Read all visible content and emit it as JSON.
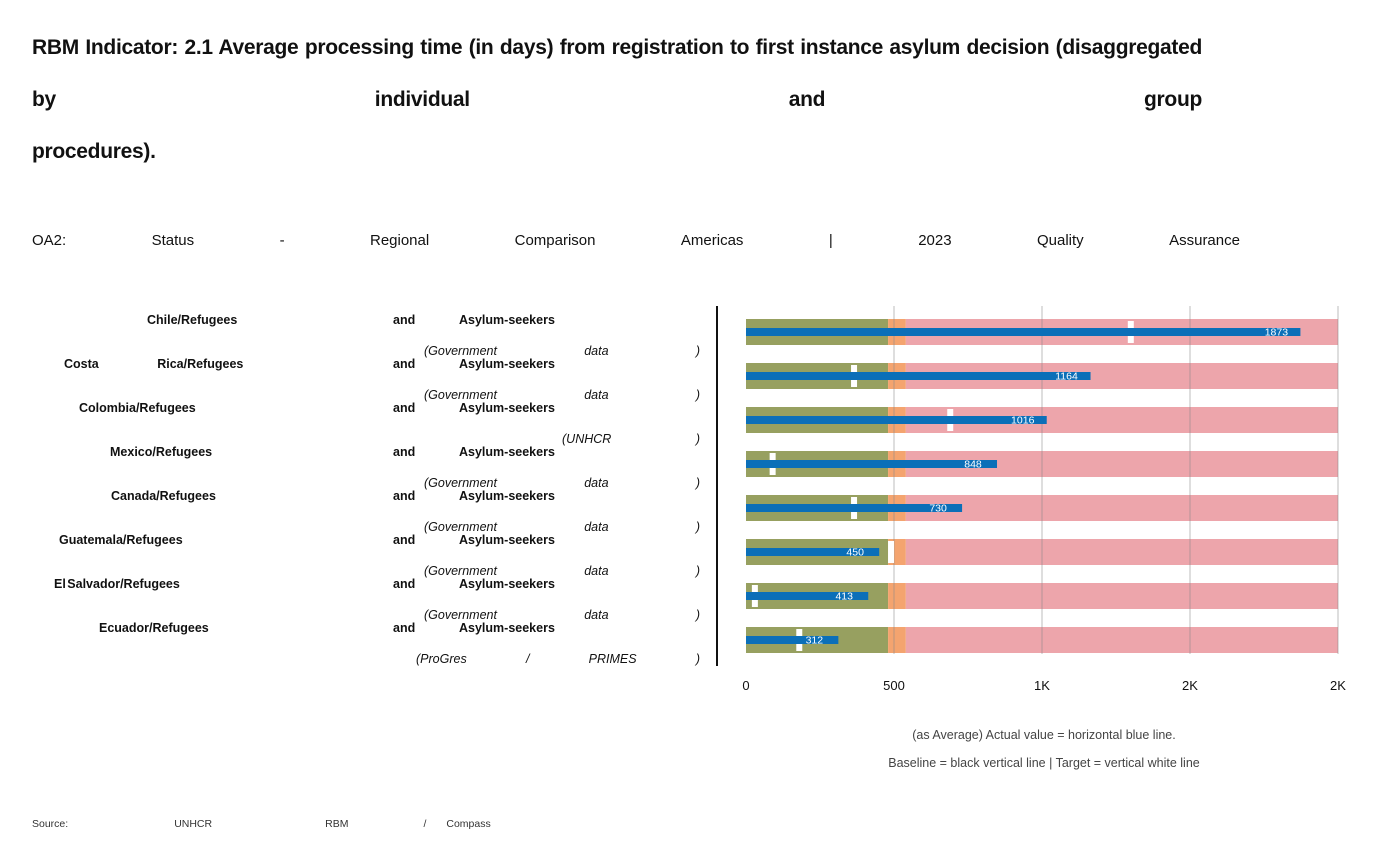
{
  "title": {
    "line1": "RBM Indicator: 2.1 Average processing time (in",
    "line2": "days) from registration to first instance asylum",
    "line3": "decision (disaggregated by individual and group",
    "line4": "procedures)."
  },
  "subtitle": [
    "OA2:",
    "Status",
    "-",
    "Regional",
    "Comparison",
    "Americas",
    "|",
    "2023",
    "Quality",
    "Assurance"
  ],
  "notes": {
    "line1": "(as Average) Actual value = horizontal blue line.",
    "line2": "Baseline = black vertical line | Target = vertical white line"
  },
  "source": [
    "Source:",
    "UNHCR",
    "RBM",
    "/",
    "Compass"
  ],
  "colors": {
    "green": "#97a060",
    "orange": "#f4a46f",
    "pink": "#eda5ab",
    "blue": "#0b6fb8",
    "white": "#ffffff",
    "grid": "#888888"
  },
  "chart_data": {
    "type": "bar",
    "orientation": "horizontal",
    "xlim": [
      0,
      2000
    ],
    "x_ticks": [
      0,
      500,
      1000,
      1500,
      2000
    ],
    "x_tick_labels": [
      "0",
      "500",
      "1K",
      "2K",
      "2K"
    ],
    "bands": [
      {
        "from": 0,
        "to": 480,
        "color": "green"
      },
      {
        "from": 480,
        "to": 540,
        "color": "orange"
      },
      {
        "from": 540,
        "to": 2000,
        "color": "pink"
      }
    ],
    "categories": [
      {
        "country": "Chile/Refugees",
        "and": "and",
        "group": "Asylum-seekers",
        "source": "(Government data )",
        "value": 1873,
        "target": 1300
      },
      {
        "country": "Costa Rica/Refugees",
        "and": "and",
        "group": "Asylum-seekers",
        "source": "(Government data )",
        "value": 1164,
        "target": 365
      },
      {
        "country": "Colombia/Refugees",
        "and": "and",
        "group": "Asylum-seekers",
        "source": "(UNHCR )",
        "value": 1016,
        "target": 690
      },
      {
        "country": "Mexico/Refugees",
        "and": "and",
        "group": "Asylum-seekers",
        "source": "(Government data )",
        "value": 848,
        "target": 90
      },
      {
        "country": "Canada/Refugees",
        "and": "and",
        "group": "Asylum-seekers",
        "source": "(Government data )",
        "value": 730,
        "target": 365
      },
      {
        "country": "Guatemala/Refugees",
        "and": "and",
        "group": "Asylum-seekers",
        "source": "(Government data )",
        "value": 450,
        "target": 490
      },
      {
        "country": "El Salvador/Refugees",
        "and": "and",
        "group": "Asylum-seekers",
        "source": "(Government data )",
        "value": 413,
        "target": 30
      },
      {
        "country": "Ecuador/Refugees",
        "and": "and",
        "group": "Asylum-seekers",
        "source": "(ProGres / PRIMES )",
        "value": 312,
        "target": 180
      }
    ]
  }
}
